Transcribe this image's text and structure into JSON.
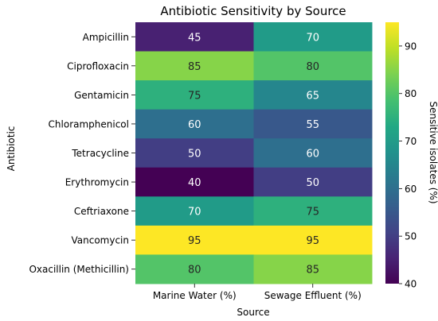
{
  "chart_data": {
    "type": "heatmap",
    "title": "Antibiotic Sensitivity by Source",
    "xlabel": "Source",
    "ylabel": "Antibiotic",
    "x_categories": [
      "Marine Water (%)",
      "Sewage Effluent (%)"
    ],
    "y_categories": [
      "Ampicillin",
      "Ciprofloxacin",
      "Gentamicin",
      "Chloramphenicol",
      "Tetracycline",
      "Erythromycin",
      "Ceftriaxone",
      "Vancomycin",
      "Oxacillin (Methicillin)"
    ],
    "values": [
      [
        45,
        70
      ],
      [
        85,
        80
      ],
      [
        75,
        65
      ],
      [
        60,
        55
      ],
      [
        50,
        60
      ],
      [
        40,
        50
      ],
      [
        70,
        75
      ],
      [
        95,
        95
      ],
      [
        80,
        85
      ]
    ],
    "colorbar": {
      "label": "Sensitive isolates (%)",
      "min": 40,
      "max": 95,
      "ticks": [
        40,
        50,
        60,
        70,
        80,
        90
      ],
      "colormap": "viridis"
    }
  }
}
